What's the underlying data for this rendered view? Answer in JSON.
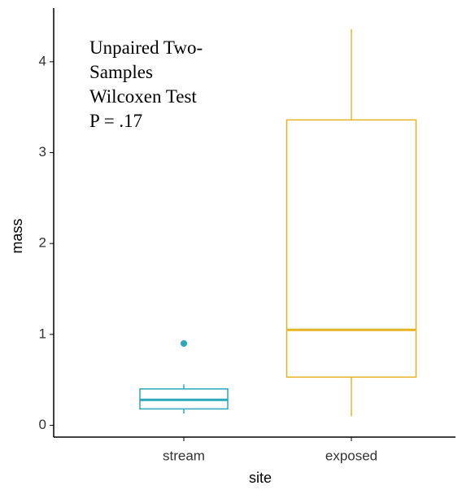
{
  "chart_data": {
    "type": "box",
    "x_label": "site",
    "y_label": "mass",
    "annotation": [
      "Unpaired Two-",
      "Samples",
      "Wilcoxen Test",
      "P = .17"
    ],
    "categories": [
      "stream",
      "exposed"
    ],
    "boxes": [
      {
        "color": "#2aa7b8",
        "whisker_low": 0.13,
        "q1": 0.18,
        "median": 0.28,
        "q3": 0.4,
        "whisker_high": 0.45,
        "outliers": [
          0.9
        ]
      },
      {
        "color": "#e6b422",
        "whisker_low": 0.1,
        "q1": 0.53,
        "median": 1.05,
        "q3": 3.36,
        "whisker_high": 4.36,
        "outliers": []
      }
    ],
    "ylim": [
      -0.13,
      4.59
    ],
    "yticks": [
      0,
      1,
      2,
      3,
      4
    ],
    "grid": false
  }
}
